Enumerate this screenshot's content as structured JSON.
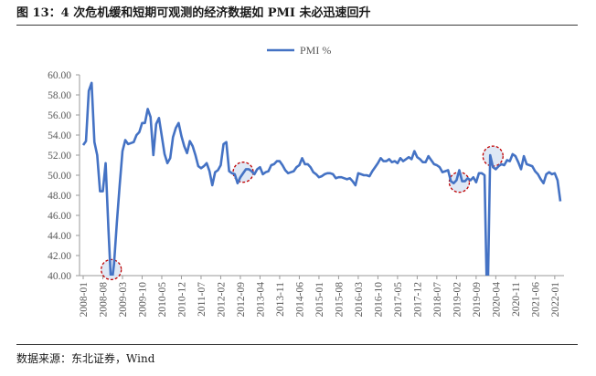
{
  "title": "图 13：4 次危机缓和短期可观测的经济数据如 PMI 未必迅速回升",
  "source": "数据来源：东北证券，Wind",
  "chart_data": {
    "type": "line",
    "title": "",
    "xlabel": "",
    "ylabel": "",
    "ylim": [
      40,
      60
    ],
    "yticks": [
      "60.00",
      "58.00",
      "56.00",
      "54.00",
      "52.00",
      "50.00",
      "48.00",
      "46.00",
      "44.00",
      "42.00",
      "40.00"
    ],
    "xticks": [
      "2008-01",
      "2008-08",
      "2009-03",
      "2009-10",
      "2010-05",
      "2010-12",
      "2011-07",
      "2012-02",
      "2012-09",
      "2013-04",
      "2013-11",
      "2014-06",
      "2015-01",
      "2015-08",
      "2016-03",
      "2016-10",
      "2017-05",
      "2017-12",
      "2018-07",
      "2019-02",
      "2019-09",
      "2020-04",
      "2020-11",
      "2021-06",
      "2022-01"
    ],
    "grid": false,
    "legend": "top-center",
    "color": "#4472C4",
    "series": [
      {
        "name": "PMI %",
        "start": "2008-01",
        "values": [
          53.0,
          53.4,
          58.4,
          59.2,
          53.3,
          52.0,
          48.4,
          48.4,
          51.2,
          44.6,
          38.8,
          41.2,
          45.3,
          49.0,
          52.4,
          53.5,
          53.1,
          53.2,
          53.3,
          54.0,
          54.3,
          55.2,
          55.2,
          56.6,
          55.8,
          52.0,
          55.1,
          55.7,
          53.9,
          52.1,
          51.2,
          51.7,
          53.8,
          54.7,
          55.2,
          53.9,
          52.9,
          52.2,
          53.4,
          52.9,
          52.0,
          50.9,
          50.7,
          50.9,
          51.2,
          50.4,
          49.0,
          50.3,
          50.5,
          51.0,
          53.1,
          53.3,
          50.4,
          50.2,
          50.1,
          49.2,
          49.8,
          50.2,
          50.6,
          50.6,
          50.4,
          50.1,
          50.6,
          50.8,
          50.1,
          50.3,
          50.4,
          51.0,
          51.1,
          51.4,
          51.4,
          51.0,
          50.5,
          50.2,
          50.3,
          50.4,
          50.8,
          51.0,
          51.7,
          51.1,
          51.1,
          50.8,
          50.3,
          50.1,
          49.8,
          49.9,
          50.1,
          50.2,
          50.2,
          50.1,
          49.7,
          49.8,
          49.8,
          49.7,
          49.6,
          49.7,
          49.4,
          49.0,
          50.2,
          50.1,
          50.0,
          50.0,
          49.9,
          50.4,
          50.8,
          51.2,
          51.7,
          51.4,
          51.4,
          51.6,
          51.3,
          51.4,
          51.2,
          51.7,
          51.4,
          51.6,
          51.8,
          51.6,
          52.4,
          51.8,
          51.6,
          51.3,
          51.3,
          51.9,
          51.5,
          51.1,
          51.0,
          50.8,
          50.3,
          50.4,
          50.5,
          49.4,
          49.2,
          49.5,
          50.5,
          49.4,
          49.4,
          49.7,
          49.5,
          49.8,
          49.3,
          50.2,
          50.2,
          50.0,
          35.7,
          52.0,
          50.8,
          50.6,
          50.9,
          51.1,
          51.0,
          51.5,
          51.4,
          52.1,
          51.9,
          51.3,
          50.6,
          51.9,
          51.1,
          51.0,
          50.9,
          50.4,
          50.1,
          49.6,
          49.2,
          50.1,
          50.3,
          50.1,
          50.2,
          49.5,
          47.4
        ]
      }
    ],
    "annotations": [
      {
        "type": "dashed-circle",
        "x": "2008-11",
        "y": 40.6
      },
      {
        "type": "dashed-circle",
        "x": "2012-10",
        "y": 50.3
      },
      {
        "type": "dashed-circle",
        "x": "2019-03",
        "y": 49.3
      },
      {
        "type": "dashed-circle",
        "x": "2020-03",
        "y": 51.9
      }
    ]
  }
}
